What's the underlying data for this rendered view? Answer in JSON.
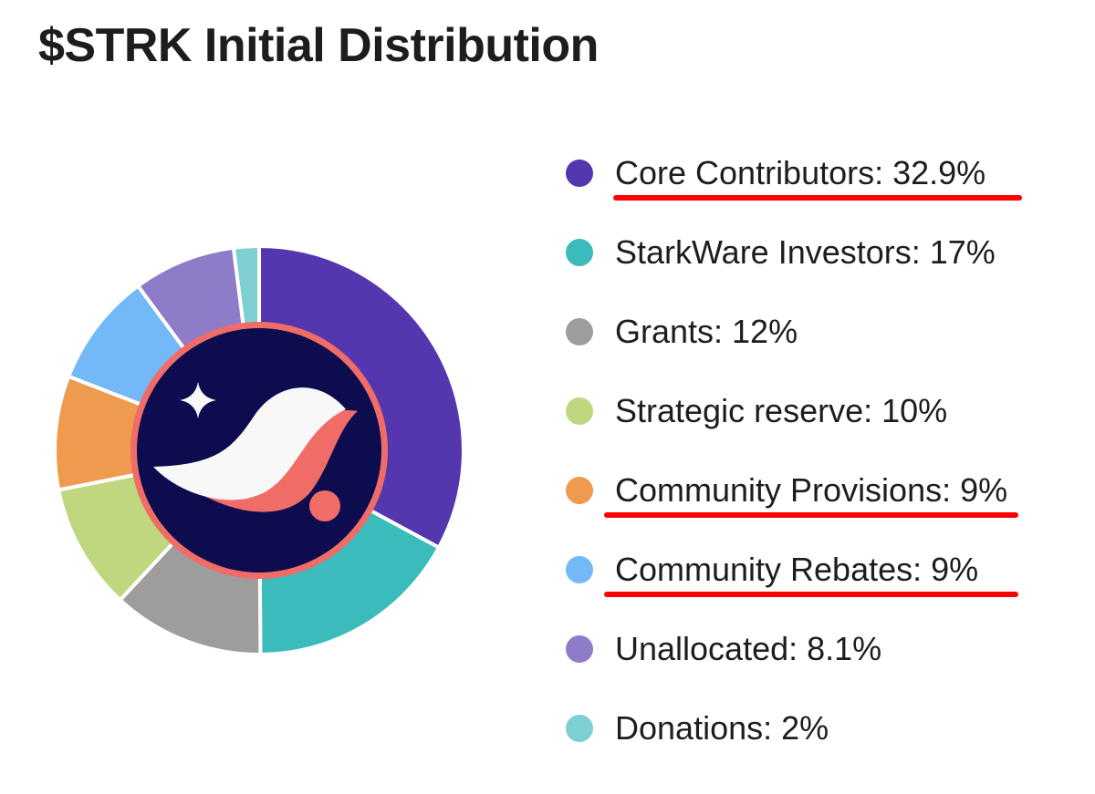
{
  "chart_data": {
    "type": "pie",
    "title": "$STRK Initial Distribution",
    "slices": [
      {
        "label": "Core Contributors: 32.9%",
        "value": 32.9,
        "color": "#5436ae",
        "highlighted": true
      },
      {
        "label": "StarkWare Investors: 17%",
        "value": 17,
        "color": "#3bbbbb",
        "highlighted": false
      },
      {
        "label": "Grants: 12%",
        "value": 12,
        "color": "#9d9d9d",
        "highlighted": false
      },
      {
        "label": "Strategic reserve: 10%",
        "value": 10,
        "color": "#bfd87f",
        "highlighted": false
      },
      {
        "label": "Community Provisions: 9%",
        "value": 9,
        "color": "#ee9a4f",
        "highlighted": true
      },
      {
        "label": "Community Rebates: 9%",
        "value": 9,
        "color": "#74b9f7",
        "highlighted": true
      },
      {
        "label": "Unallocated: 8.1%",
        "value": 8.1,
        "color": "#8e7cc9",
        "highlighted": false
      },
      {
        "label": "Donations: 2%",
        "value": 2,
        "color": "#7ecfd1",
        "highlighted": false
      }
    ],
    "legend": "right",
    "highlight_color": "#ff0000"
  },
  "logo": {
    "name": "starknet-logo",
    "background": "#0c0c4f",
    "ring_color": "#ef6d66",
    "white": "#f8f8f8",
    "coral": "#ef6d66"
  }
}
